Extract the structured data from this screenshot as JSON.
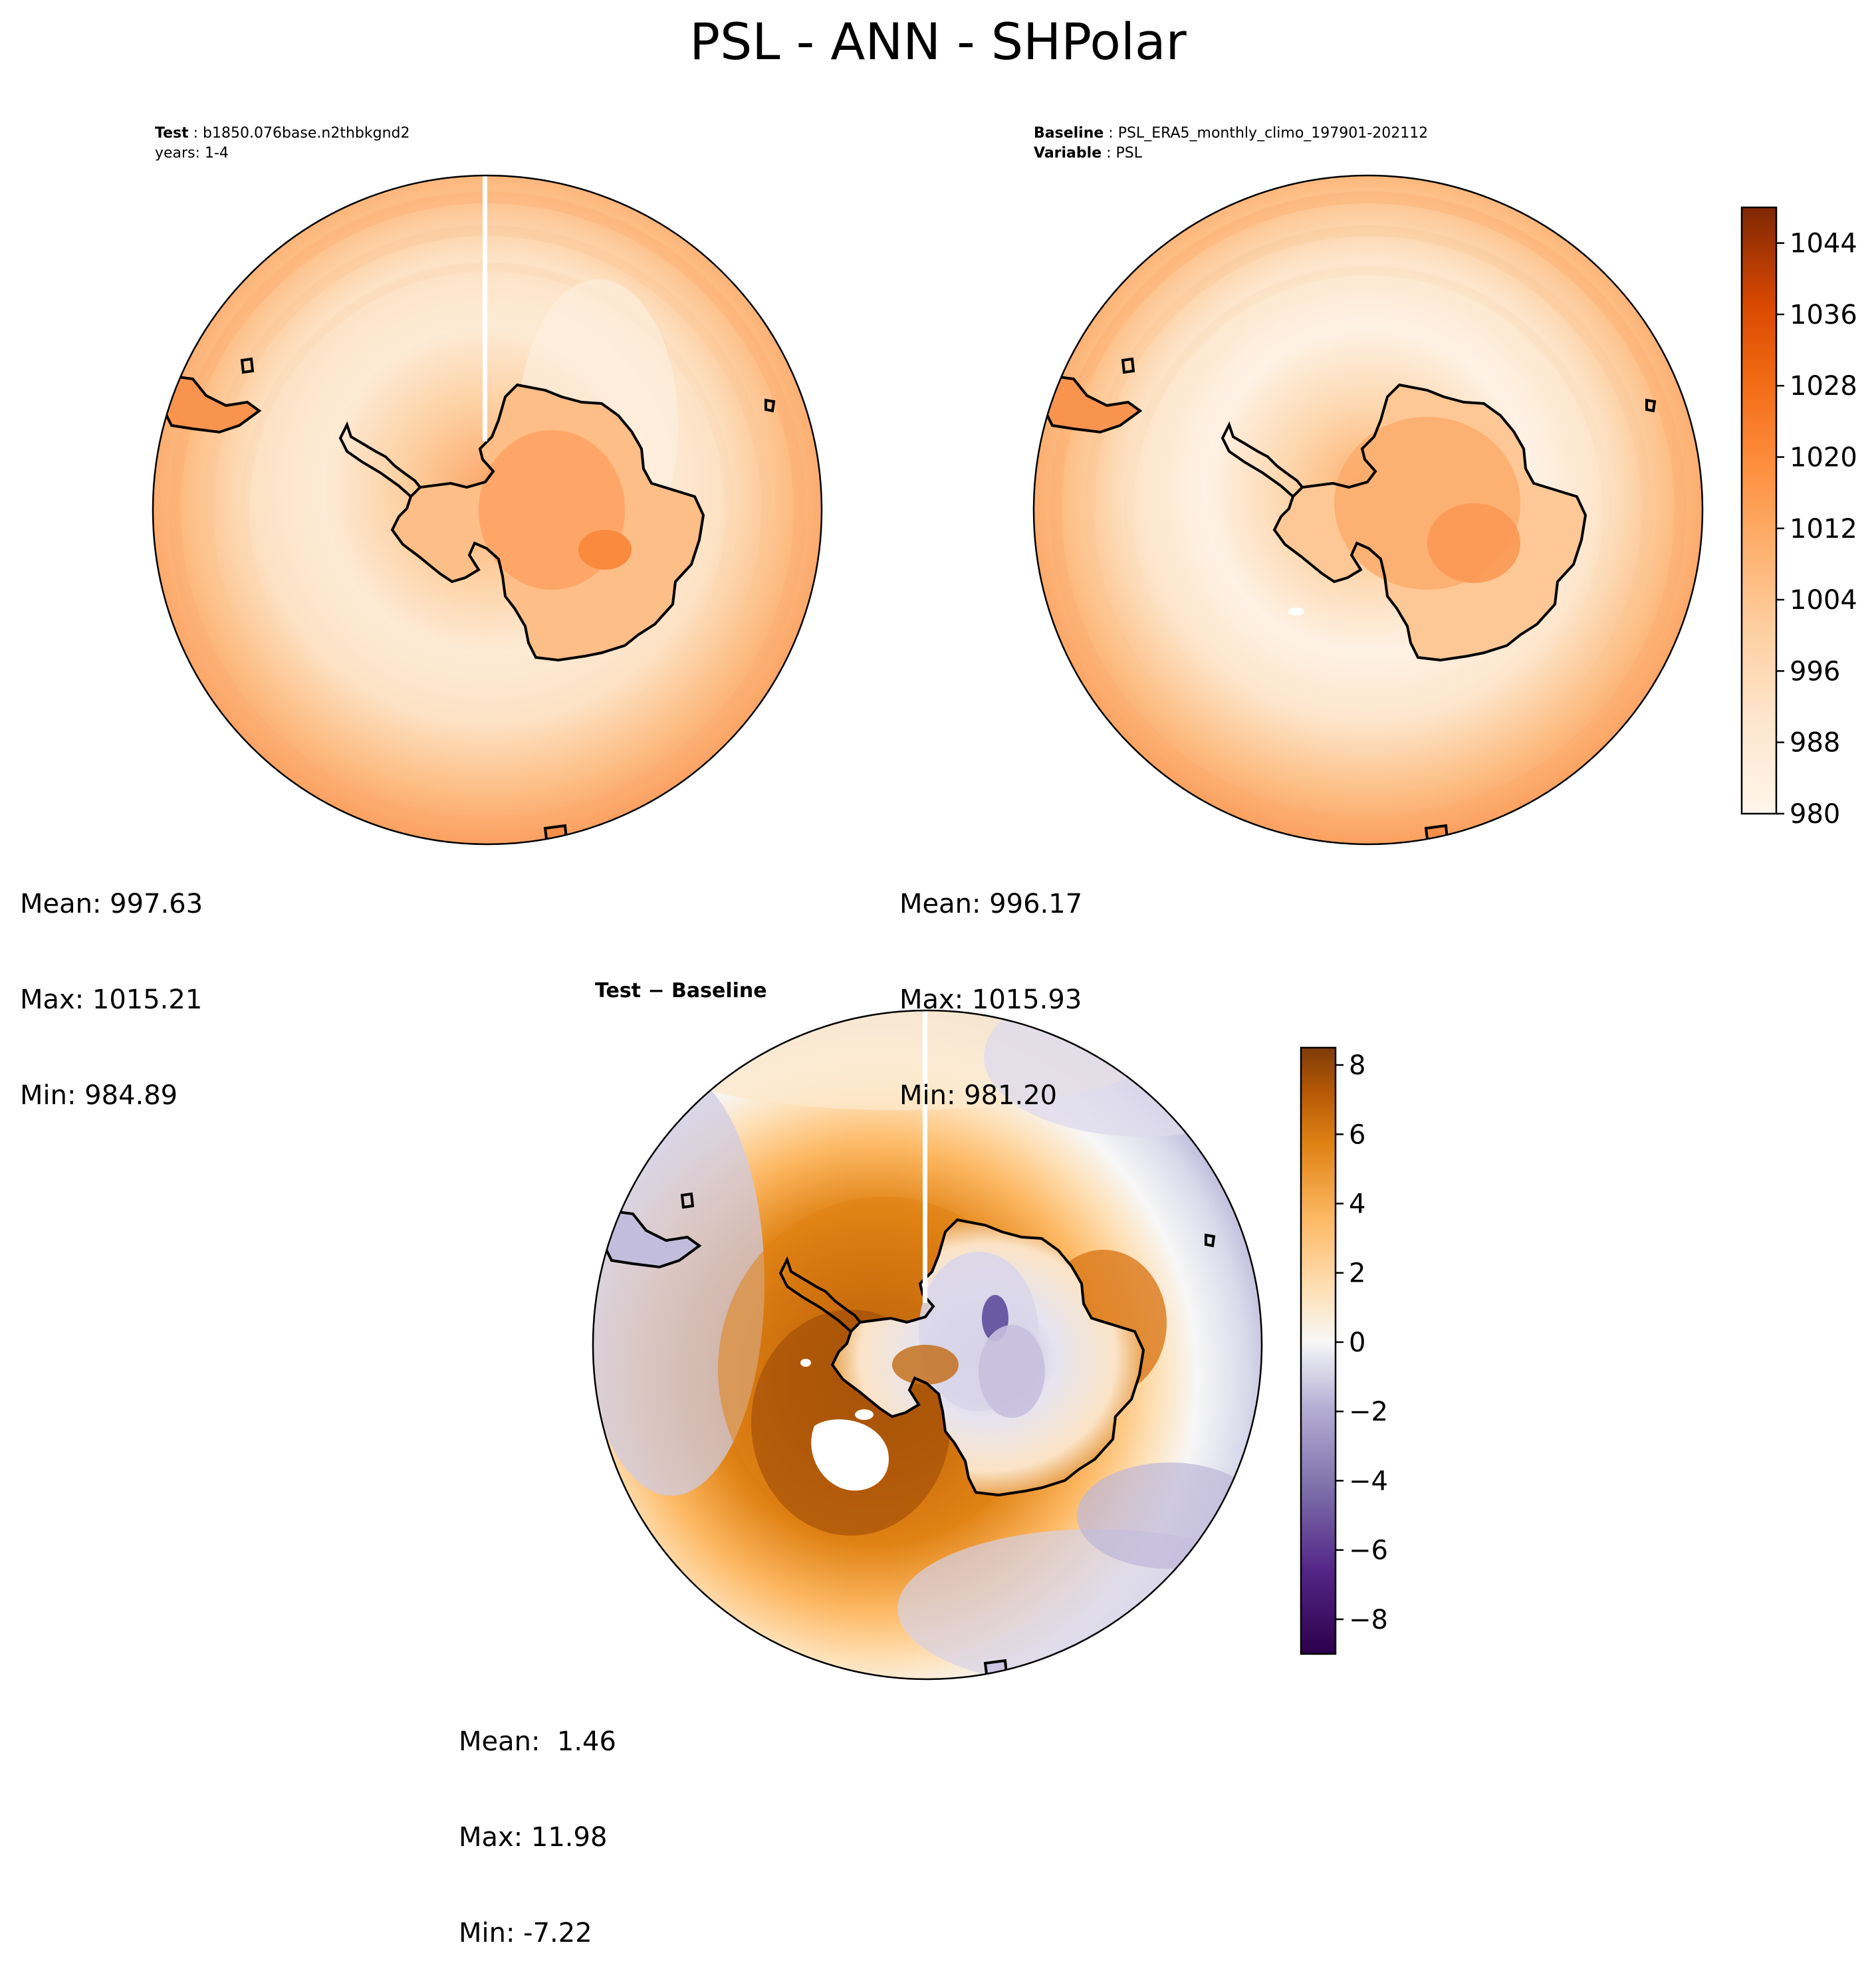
{
  "figure": {
    "suptitle": "PSL - ANN - SHPolar"
  },
  "panels": {
    "test": {
      "label_key": "Test",
      "label_value": "b1850.076base.n2thbkgnd2",
      "years": "years: 1-4",
      "stats": {
        "mean": "Mean: 997.63",
        "max": "Max: 1015.21",
        "min": "Min: 984.89"
      }
    },
    "baseline": {
      "label_key": "Baseline",
      "label_value": "PSL_ERA5_monthly_climo_197901-202112",
      "variable_key": "Variable",
      "variable_value": "PSL",
      "stats": {
        "mean": "Mean: 996.17",
        "max": "Max: 1015.93",
        "min": "Min: 981.20"
      }
    },
    "diff": {
      "title": "Test − Baseline",
      "stats": {
        "mean": "Mean:  1.46",
        "max": "Max: 11.98",
        "min": "Min: -7.22"
      }
    }
  },
  "colorbars": {
    "field": {
      "colormap": "Oranges",
      "range": [
        980,
        1048
      ],
      "ticks": [
        "1044",
        "1036",
        "1028",
        "1020",
        "1012",
        "1004",
        "996",
        "988",
        "980"
      ]
    },
    "diff": {
      "colormap": "PuOr_r",
      "range": [
        -9,
        8.5
      ],
      "ticks": [
        "8",
        "6",
        "4",
        "2",
        "0",
        "−2",
        "−4",
        "−6",
        "−8"
      ]
    }
  },
  "colors": {
    "orange_light": "#fdebd6",
    "orange_mid": "#fcb97a",
    "orange_dark": "#7f2704",
    "purple_dark": "#2d004b",
    "brown_dark": "#7f3b08",
    "neutral": "#f7f7f7"
  }
}
